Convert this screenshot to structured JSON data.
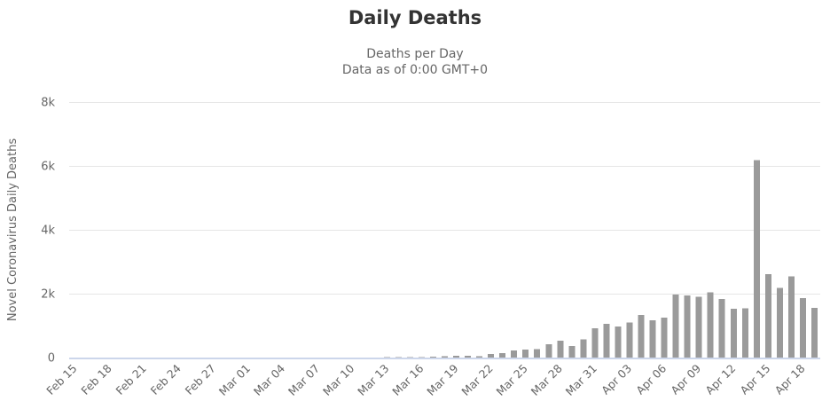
{
  "chart_data": {
    "type": "bar",
    "title": "Daily Deaths",
    "subtitle_lines": [
      "Deaths per Day",
      "Data as of 0:00 GMT+0"
    ],
    "ylabel": "Novel Coronavirus Daily Deaths",
    "xlabel": "",
    "ylim": [
      0,
      8000
    ],
    "yticks": [
      {
        "value": 0,
        "label": "0"
      },
      {
        "value": 2000,
        "label": "2k"
      },
      {
        "value": 4000,
        "label": "4k"
      },
      {
        "value": 6000,
        "label": "6k"
      },
      {
        "value": 8000,
        "label": "8k"
      }
    ],
    "xtick_interval": 3,
    "grid": true,
    "legend": false,
    "bar_color": "#9a9a9a",
    "grid_color": "#e6e6e6",
    "axis_line_color": "#ccd6eb",
    "text_color": "#666666",
    "title_color": "#333333",
    "categories": [
      "Feb 15",
      "Feb 16",
      "Feb 17",
      "Feb 18",
      "Feb 19",
      "Feb 20",
      "Feb 21",
      "Feb 22",
      "Feb 23",
      "Feb 24",
      "Feb 25",
      "Feb 26",
      "Feb 27",
      "Feb 28",
      "Feb 29",
      "Mar 01",
      "Mar 02",
      "Mar 03",
      "Mar 04",
      "Mar 05",
      "Mar 06",
      "Mar 07",
      "Mar 08",
      "Mar 09",
      "Mar 10",
      "Mar 11",
      "Mar 12",
      "Mar 13",
      "Mar 14",
      "Mar 15",
      "Mar 16",
      "Mar 17",
      "Mar 18",
      "Mar 19",
      "Mar 20",
      "Mar 21",
      "Mar 22",
      "Mar 23",
      "Mar 24",
      "Mar 25",
      "Mar 26",
      "Mar 27",
      "Mar 28",
      "Mar 29",
      "Mar 30",
      "Mar 31",
      "Apr 01",
      "Apr 02",
      "Apr 03",
      "Apr 04",
      "Apr 05",
      "Apr 06",
      "Apr 07",
      "Apr 08",
      "Apr 09",
      "Apr 10",
      "Apr 11",
      "Apr 12",
      "Apr 13",
      "Apr 14",
      "Apr 15",
      "Apr 16",
      "Apr 17",
      "Apr 18",
      "Apr 19"
    ],
    "values": [
      0,
      0,
      0,
      0,
      0,
      0,
      0,
      0,
      0,
      0,
      0,
      0,
      0,
      0,
      1,
      1,
      4,
      3,
      2,
      1,
      3,
      4,
      3,
      4,
      6,
      4,
      3,
      8,
      9,
      11,
      18,
      23,
      41,
      57,
      49,
      46,
      112,
      140,
      225,
      247,
      268,
      411,
      525,
      363,
      573,
      912,
      1049,
      968,
      1104,
      1331,
      1165,
      1255,
      1970,
      1940,
      1900,
      2035,
      1830,
      1528,
      1535,
      6185,
      2618,
      2176,
      2535,
      1867,
      1561
    ]
  }
}
